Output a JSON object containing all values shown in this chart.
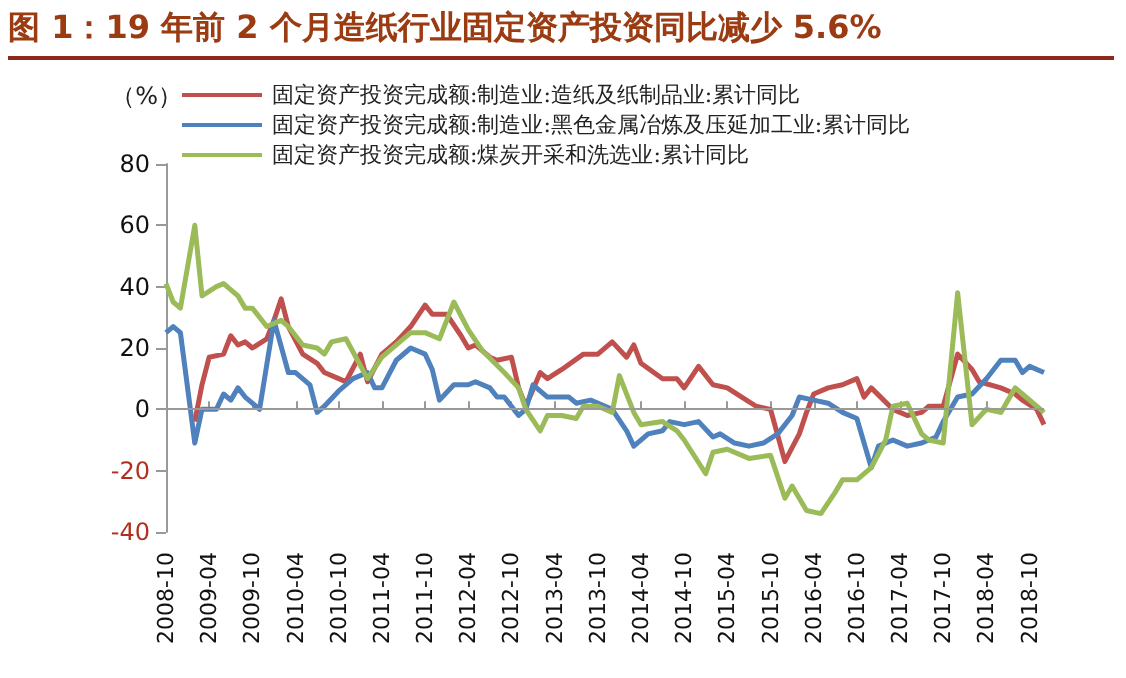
{
  "chart_data": {
    "type": "line",
    "title": "图 1：19 年前 2 个月造纸行业固定资产投资同比减少 5.6%",
    "ylabel": "（%）",
    "legend": "top left",
    "grid": false,
    "marker": "none",
    "xlim": [
      "2008-10",
      "2018-12"
    ],
    "xticks": [
      "2008-10",
      "2009-04",
      "2009-10",
      "2010-04",
      "2010-10",
      "2011-04",
      "2011-10",
      "2012-04",
      "2012-10",
      "2013-04",
      "2013-10",
      "2014-04",
      "2014-10",
      "2015-04",
      "2015-10",
      "2016-04",
      "2016-10",
      "2017-04",
      "2017-10",
      "2018-04",
      "2018-10"
    ],
    "ylim": [
      -40,
      80
    ],
    "yticks": [
      -40,
      -20,
      0,
      20,
      40,
      60,
      80
    ],
    "ref_lines": [
      {
        "axis": "y",
        "value": 0,
        "color": "#999999"
      }
    ],
    "series": [
      {
        "name": "固定资产投资完成额:制造业:造纸及纸制品业:累计同比",
        "color": "#c0504d",
        "x": [
          "2009-02",
          "2009-03",
          "2009-04",
          "2009-06",
          "2009-07",
          "2009-08",
          "2009-09",
          "2009-10",
          "2009-12",
          "2010-01",
          "2010-02",
          "2010-03",
          "2010-05",
          "2010-07",
          "2010-08",
          "2010-10",
          "2010-11",
          "2011-01",
          "2011-02",
          "2011-04",
          "2011-06",
          "2011-08",
          "2011-10",
          "2011-11",
          "2012-01",
          "2012-03",
          "2012-04",
          "2012-05",
          "2012-07",
          "2012-08",
          "2012-10",
          "2012-11",
          "2012-12",
          "2013-02",
          "2013-03",
          "2013-05",
          "2013-08",
          "2013-10",
          "2013-12",
          "2014-02",
          "2014-03",
          "2014-04",
          "2014-07",
          "2014-09",
          "2014-10",
          "2014-12",
          "2015-02",
          "2015-04",
          "2015-06",
          "2015-08",
          "2015-10",
          "2015-12",
          "2016-02",
          "2016-03",
          "2016-04",
          "2016-06",
          "2016-08",
          "2016-10",
          "2016-11",
          "2016-12",
          "2017-03",
          "2017-05",
          "2017-07",
          "2017-08",
          "2017-10",
          "2017-12",
          "2018-02",
          "2018-03",
          "2018-06",
          "2018-08",
          "2018-09",
          "2018-11",
          "2018-12"
        ],
        "values": [
          -4,
          8,
          17,
          18,
          24,
          21,
          22,
          20,
          23,
          29,
          36,
          27,
          18,
          15,
          12,
          10,
          9,
          18,
          9,
          18,
          22,
          27,
          34,
          31,
          31,
          24,
          20,
          21,
          17,
          16,
          17,
          7,
          1,
          12,
          10,
          13,
          18,
          18,
          22,
          17,
          21,
          15,
          10,
          10,
          7,
          14,
          8,
          7,
          4,
          1,
          0,
          -17,
          -8,
          -1,
          5,
          7,
          8,
          10,
          4,
          7,
          0,
          -2,
          -1,
          1,
          1,
          18,
          13,
          9,
          7,
          5,
          3,
          0,
          -5
        ]
      },
      {
        "name": "固定资产投资完成额:制造业:黑色金属冶炼及压延加工业:累计同比",
        "color": "#4f81bd",
        "x": [
          "2008-10",
          "2008-11",
          "2008-12",
          "2009-02",
          "2009-03",
          "2009-05",
          "2009-06",
          "2009-07",
          "2009-08",
          "2009-09",
          "2009-10",
          "2009-11",
          "2010-01",
          "2010-03",
          "2010-04",
          "2010-06",
          "2010-07",
          "2010-08",
          "2010-10",
          "2010-12",
          "2011-02",
          "2011-03",
          "2011-04",
          "2011-06",
          "2011-08",
          "2011-10",
          "2011-11",
          "2011-12",
          "2012-02",
          "2012-04",
          "2012-05",
          "2012-07",
          "2012-08",
          "2012-09",
          "2012-11",
          "2012-12",
          "2013-01",
          "2013-03",
          "2013-06",
          "2013-07",
          "2013-09",
          "2013-12",
          "2014-02",
          "2014-03",
          "2014-05",
          "2014-07",
          "2014-08",
          "2014-10",
          "2014-12",
          "2015-02",
          "2015-03",
          "2015-05",
          "2015-07",
          "2015-09",
          "2015-11",
          "2016-01",
          "2016-02",
          "2016-04",
          "2016-06",
          "2016-08",
          "2016-10",
          "2016-12",
          "2017-01",
          "2017-03",
          "2017-05",
          "2017-07",
          "2017-09",
          "2017-10",
          "2017-12",
          "2018-02",
          "2018-04",
          "2018-06",
          "2018-08",
          "2018-09",
          "2018-10",
          "2018-12"
        ],
        "values": [
          25,
          27,
          25,
          -11,
          0,
          0,
          5,
          3,
          7,
          4,
          2,
          0,
          29,
          12,
          12,
          8,
          -1,
          1,
          6,
          10,
          12,
          7,
          7,
          16,
          20,
          18,
          13,
          3,
          8,
          8,
          9,
          7,
          4,
          4,
          -2,
          0,
          8,
          4,
          4,
          2,
          3,
          0,
          -7,
          -12,
          -8,
          -7,
          -4,
          -5,
          -4,
          -9,
          -8,
          -11,
          -12,
          -11,
          -8,
          -2,
          4,
          3,
          2,
          -1,
          -3,
          -19,
          -12,
          -10,
          -12,
          -11,
          -9,
          -4,
          4,
          5,
          10,
          16,
          16,
          12,
          14,
          12
        ]
      },
      {
        "name": "固定资产投资完成额:煤炭开采和洗选业:累计同比",
        "color": "#9bbb59",
        "x": [
          "2008-10",
          "2008-11",
          "2008-12",
          "2009-02",
          "2009-03",
          "2009-05",
          "2009-06",
          "2009-08",
          "2009-09",
          "2009-10",
          "2009-12",
          "2010-02",
          "2010-03",
          "2010-05",
          "2010-07",
          "2010-08",
          "2010-09",
          "2010-11",
          "2011-02",
          "2011-04",
          "2011-06",
          "2011-08",
          "2011-10",
          "2011-12",
          "2012-02",
          "2012-04",
          "2012-06",
          "2012-09",
          "2012-11",
          "2012-12",
          "2013-02",
          "2013-03",
          "2013-05",
          "2013-07",
          "2013-08",
          "2013-10",
          "2013-12",
          "2014-01",
          "2014-03",
          "2014-04",
          "2014-07",
          "2014-09",
          "2014-10",
          "2015-01",
          "2015-02",
          "2015-04",
          "2015-07",
          "2015-10",
          "2015-12",
          "2016-01",
          "2016-03",
          "2016-05",
          "2016-07",
          "2016-08",
          "2016-10",
          "2016-12",
          "2017-02",
          "2017-03",
          "2017-05",
          "2017-07",
          "2017-08",
          "2017-10",
          "2017-12",
          "2018-02",
          "2018-04",
          "2018-06",
          "2018-08",
          "2018-09",
          "2018-12"
        ],
        "values": [
          41,
          35,
          33,
          60,
          37,
          40,
          41,
          37,
          33,
          33,
          27,
          29,
          27,
          21,
          20,
          18,
          22,
          23,
          10,
          17,
          21,
          25,
          25,
          23,
          35,
          26,
          19,
          12,
          7,
          0,
          -7,
          -2,
          -2,
          -3,
          1,
          1,
          -1,
          11,
          -1,
          -5,
          -4,
          -7,
          -10,
          -21,
          -14,
          -13,
          -16,
          -15,
          -29,
          -25,
          -33,
          -34,
          -27,
          -23,
          -23,
          -19,
          -10,
          1,
          2,
          -8,
          -10,
          -11,
          38,
          -5,
          0,
          -1,
          7,
          5,
          -1
        ]
      }
    ]
  }
}
